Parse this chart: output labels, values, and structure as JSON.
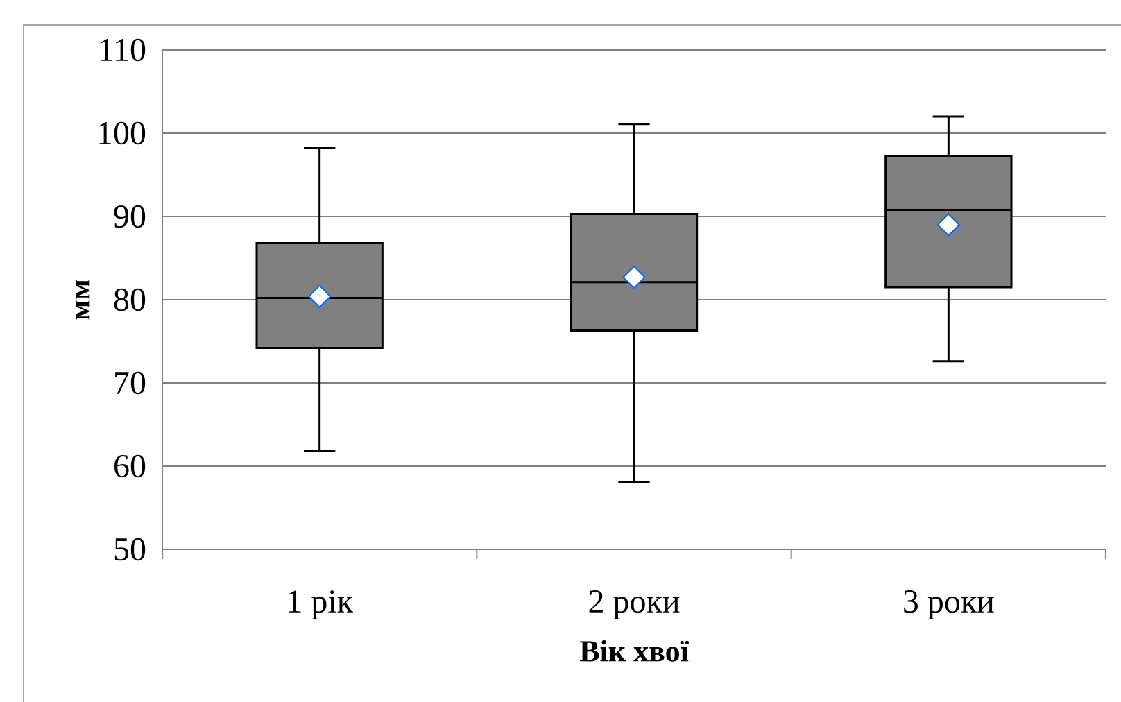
{
  "chart_data": {
    "type": "box",
    "xlabel": "Вік хвої",
    "ylabel": "мм",
    "categories": [
      "1 рік",
      "2 роки",
      "3 роки"
    ],
    "boxes": [
      {
        "low": 61.8,
        "q1": 74.2,
        "median": 80.2,
        "q3": 86.8,
        "high": 98.2,
        "mean": 80.4
      },
      {
        "low": 58.1,
        "q1": 76.3,
        "median": 82.1,
        "q3": 90.3,
        "high": 101.1,
        "mean": 82.7
      },
      {
        "low": 72.6,
        "q1": 81.5,
        "median": 90.8,
        "q3": 97.2,
        "high": 102.0,
        "mean": 89.0
      }
    ],
    "color": "#808080",
    "ylim": [
      50,
      110
    ],
    "yticks": [
      50,
      60,
      70,
      80,
      90,
      100,
      110
    ],
    "grid": "y"
  }
}
